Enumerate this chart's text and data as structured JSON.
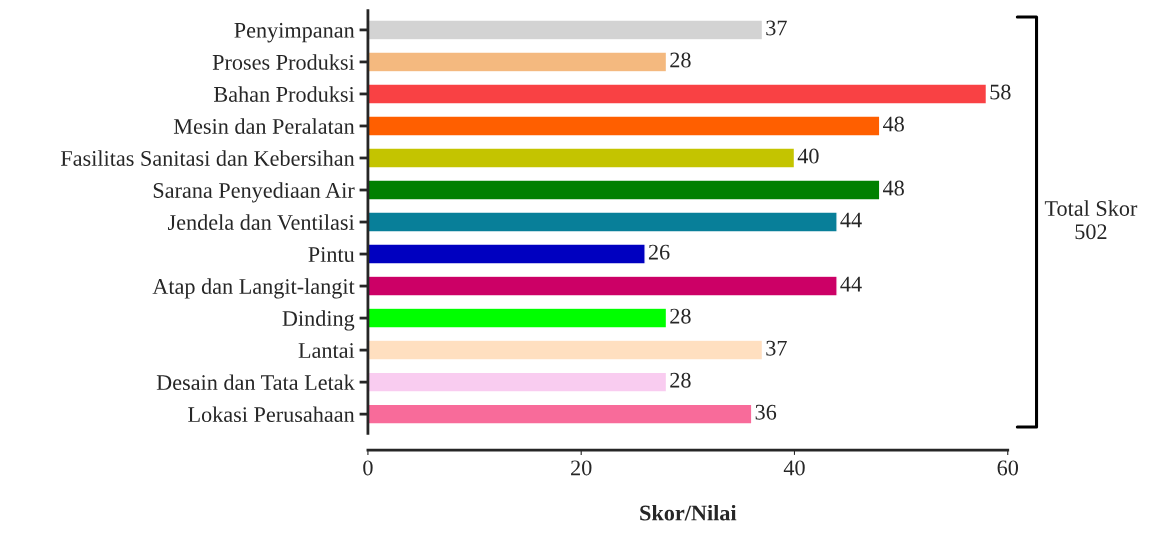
{
  "chart_data": {
    "type": "bar",
    "orientation": "horizontal",
    "xlabel": "Skor/Nilai",
    "categories": [
      "Penyimpanan",
      "Proses Produksi",
      "Bahan Produksi",
      "Mesin dan Peralatan",
      "Fasilitas Sanitasi dan Kebersihan",
      "Sarana Penyediaan Air",
      "Jendela dan Ventilasi",
      "Pintu",
      "Atap dan Langit-langit",
      "Dinding",
      "Lantai",
      "Desain dan Tata Letak",
      "Lokasi Perusahaan"
    ],
    "values": [
      37,
      28,
      58,
      48,
      40,
      48,
      44,
      26,
      44,
      28,
      37,
      28,
      36
    ],
    "colors": [
      "#d3d3d3",
      "#f4b97f",
      "#f94144",
      "#ff5f00",
      "#c4c400",
      "#008000",
      "#087f99",
      "#0000c0",
      "#cc0066",
      "#00ff00",
      "#ffdfc0",
      "#f9ccf0",
      "#f86b9a"
    ],
    "xlim": [
      0,
      60
    ],
    "xticks": [
      0,
      20,
      40,
      60
    ],
    "data_labels": true,
    "grid": false,
    "legend": false,
    "annotations": [
      "Total Skor\n502"
    ]
  }
}
